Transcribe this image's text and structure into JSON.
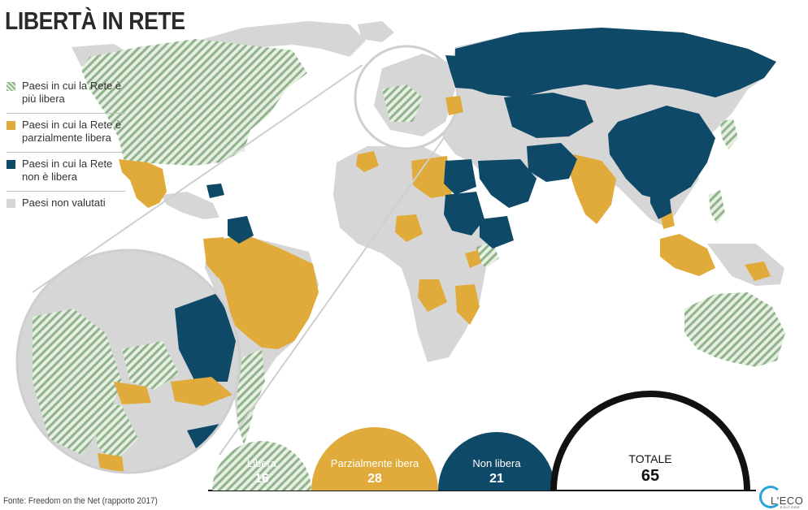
{
  "title": "LIBERTÀ IN RETE",
  "legend": [
    {
      "key": "free",
      "label": "Paesi in cui la Rete è più libera"
    },
    {
      "key": "partial",
      "label": "Paesi in cui la Rete è parzialmente libera"
    },
    {
      "key": "notfree",
      "label": "Paesi in cui la Rete non è libera"
    },
    {
      "key": "none",
      "label": "Paesi non valutati"
    }
  ],
  "colors": {
    "free_stripe": "#8fb48c",
    "free_bg": "#e7efe3",
    "partial": "#e0ab3a",
    "notfree": "#0e4a68",
    "not_rated": "#d6d6d6",
    "total_ring": "#111111"
  },
  "totals": [
    {
      "label": "Libera",
      "value": 16
    },
    {
      "label": "Parzialmente ibera",
      "value": 28
    },
    {
      "label": "Non libera",
      "value": 21
    },
    {
      "label": "TOTALE",
      "value": 65
    }
  ],
  "source": "Fonte: Freedom on the Net (rapporto 2017)",
  "logo": {
    "text": "L'ECO",
    "sub": "EDITORE"
  }
}
